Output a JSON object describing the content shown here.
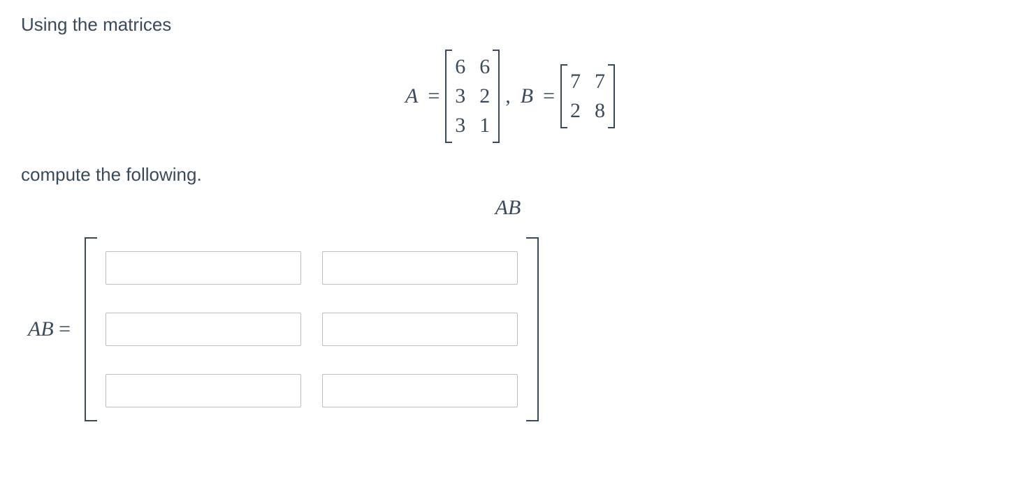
{
  "text": {
    "intro": "Using the matrices",
    "compute_prompt": "compute the following.",
    "equals": "=",
    "comma": ","
  },
  "matrixA": {
    "label": "A",
    "rows": [
      [
        "6",
        "6"
      ],
      [
        "3",
        "2"
      ],
      [
        "3",
        "1"
      ]
    ]
  },
  "matrixB": {
    "label": "B",
    "rows": [
      [
        "7",
        "7"
      ],
      [
        "2",
        "8"
      ]
    ]
  },
  "product": {
    "label": "AB",
    "answer_label": "AB",
    "equals": "="
  },
  "answer_grid": {
    "rows": 3,
    "cols": 2,
    "values": [
      [
        "",
        ""
      ],
      [
        "",
        ""
      ],
      [
        "",
        ""
      ]
    ]
  },
  "colors": {
    "text": "#3a4a5c",
    "input_border": "#b8c0c8",
    "background": "#ffffff"
  }
}
